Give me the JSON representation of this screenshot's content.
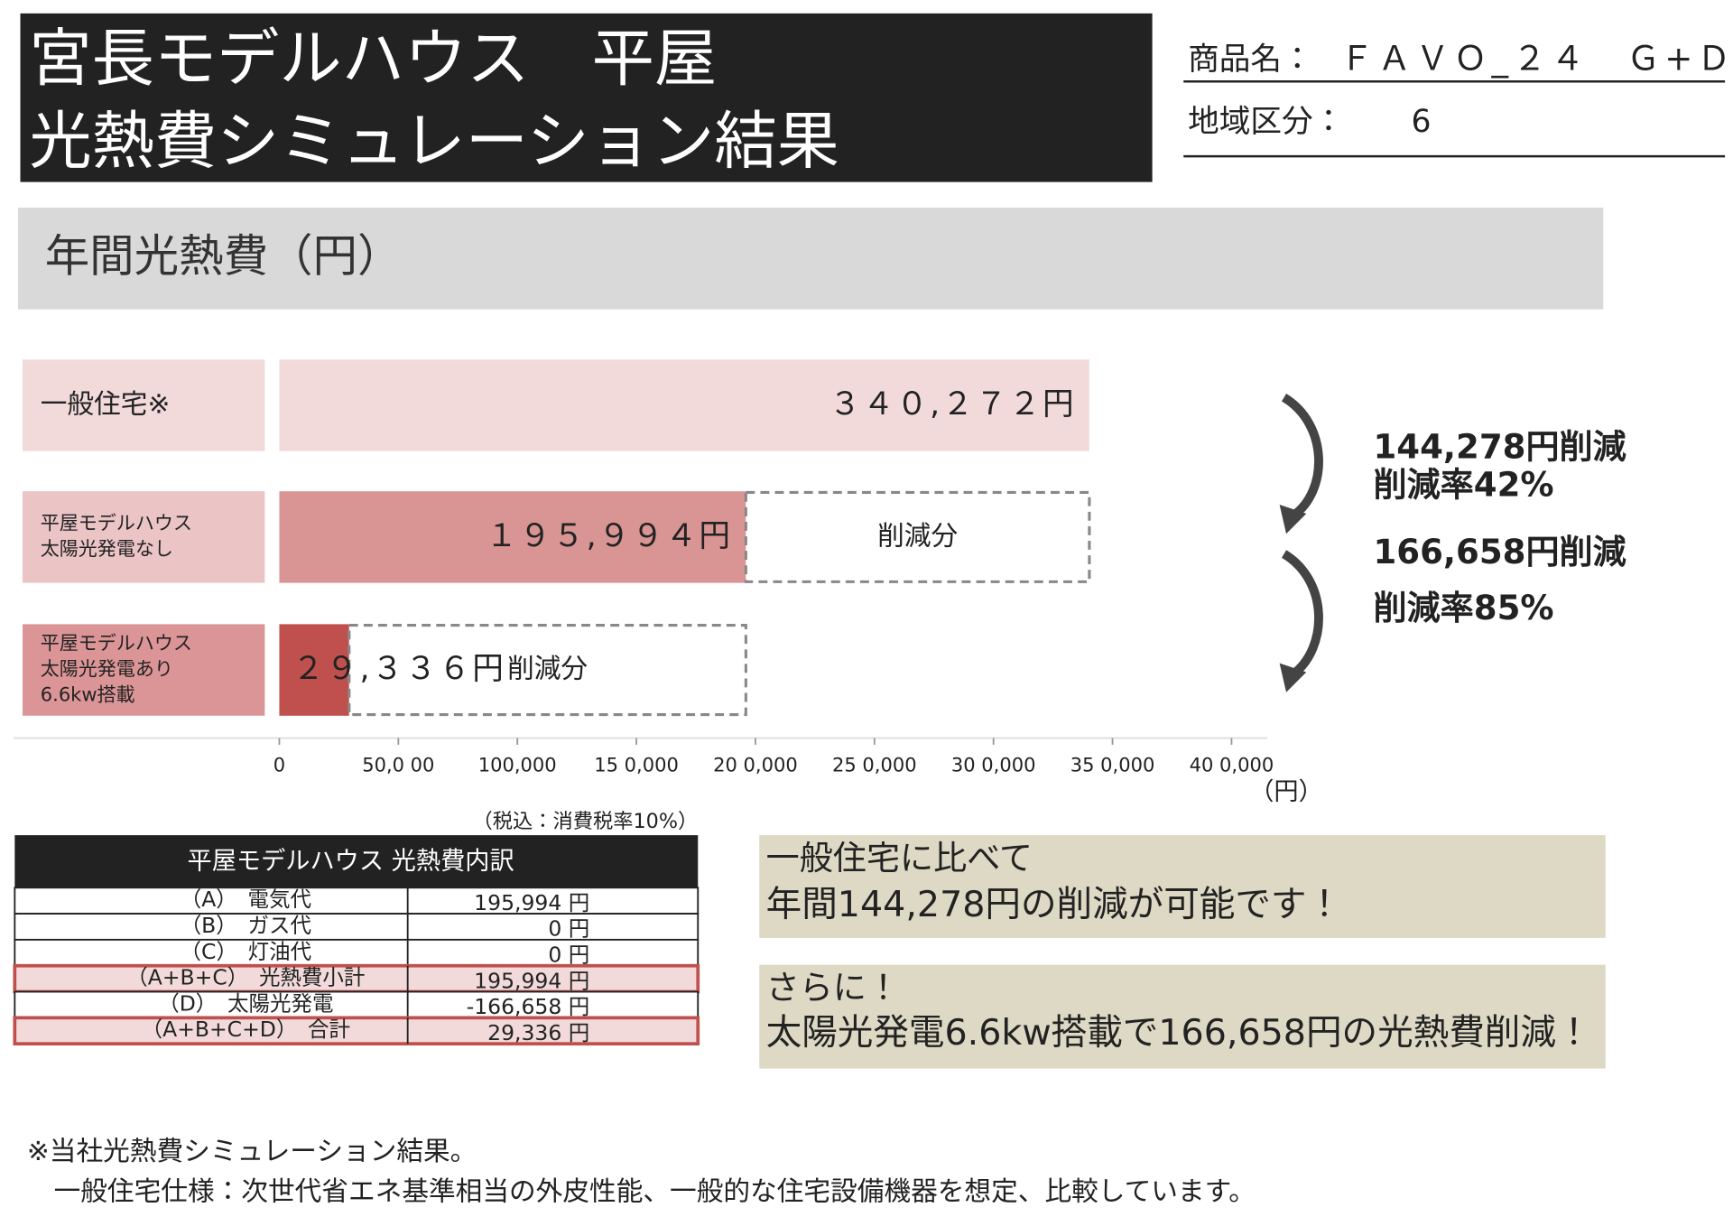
{
  "header": {
    "title_lines": [
      "宮長モデルハウス　平屋",
      "光熱費シミュレーション結果"
    ],
    "product_label": "商品名：",
    "product_value": "ＦＡＶＯ_２４　Ｇ+Ｄ",
    "region_label": "地域区分：",
    "region_value": "6"
  },
  "section_title": "年間光熱費（円）",
  "chart_data": {
    "type": "bar",
    "orientation": "horizontal",
    "categories": [
      "一般住宅※",
      "平屋モデルハウス\n太陽光発電なし",
      "平屋モデルハウス\n太陽光発電あり\n6.6kw搭載"
    ],
    "category_colors": [
      "#f2dadb",
      "#ebc4c6",
      "#dc9597"
    ],
    "values": [
      340272,
      195994,
      29336
    ],
    "value_labels": [
      "３４０,２７２円",
      "１９５,９９４円",
      "２９,３３６円"
    ],
    "colors": [
      "#f2dadb",
      "#d99494",
      "#c0504d"
    ],
    "reductions": {
      "label": "削減分",
      "values": [
        null,
        144278,
        166658
      ]
    },
    "xlim": [
      0,
      400000
    ],
    "xticks": [
      0,
      {
        "value": 50000,
        "label": "50,0 00"
      },
      {
        "value": 100000,
        "label": "100,000"
      },
      {
        "value": 150000,
        "label": "15 0,000"
      },
      {
        "value": 200000,
        "label": "20 0,000"
      },
      {
        "value": 250000,
        "label": "25 0,000"
      },
      {
        "value": 300000,
        "label": "30 0,000"
      },
      {
        "value": 350000,
        "label": "35 0,000"
      },
      {
        "value": 400000,
        "label": "40 0,000"
      }
    ],
    "x_unit": "（円）",
    "annotations": [
      [
        "144,278円削減",
        "削減率42%"
      ],
      [
        "166,658円削減",
        "削減率85%"
      ]
    ]
  },
  "table": {
    "note": "（税込：消費税率10%）",
    "title": "平屋モデルハウス  光熱費内訳",
    "rows": [
      [
        "（A）　電気代",
        "195,994 円"
      ],
      [
        "（B）　ガス代",
        "0 円"
      ],
      [
        "（C）　灯油代",
        "0 円"
      ],
      [
        "（A+B+C）　光熱費小計",
        "195,994 円"
      ],
      [
        "（D）　太陽光発電",
        "-166,658 円"
      ],
      [
        "（A+B+C+D）　合計",
        "29,336 円"
      ]
    ],
    "highlighted_rows": [
      3,
      5
    ]
  },
  "callouts": [
    [
      "一般住宅に比べて",
      "年間144,278円の削減が可能です！"
    ],
    [
      "さらに！",
      "太陽光発電6.6kw搭載で166,658円の光熱費削減！"
    ]
  ],
  "footnote": [
    "※当社光熱費シミュレーション結果。",
    "　一般住宅仕様：次世代省エネ基準相当の外皮性能、一般的な住宅設備機器を想定、比較しています。"
  ]
}
